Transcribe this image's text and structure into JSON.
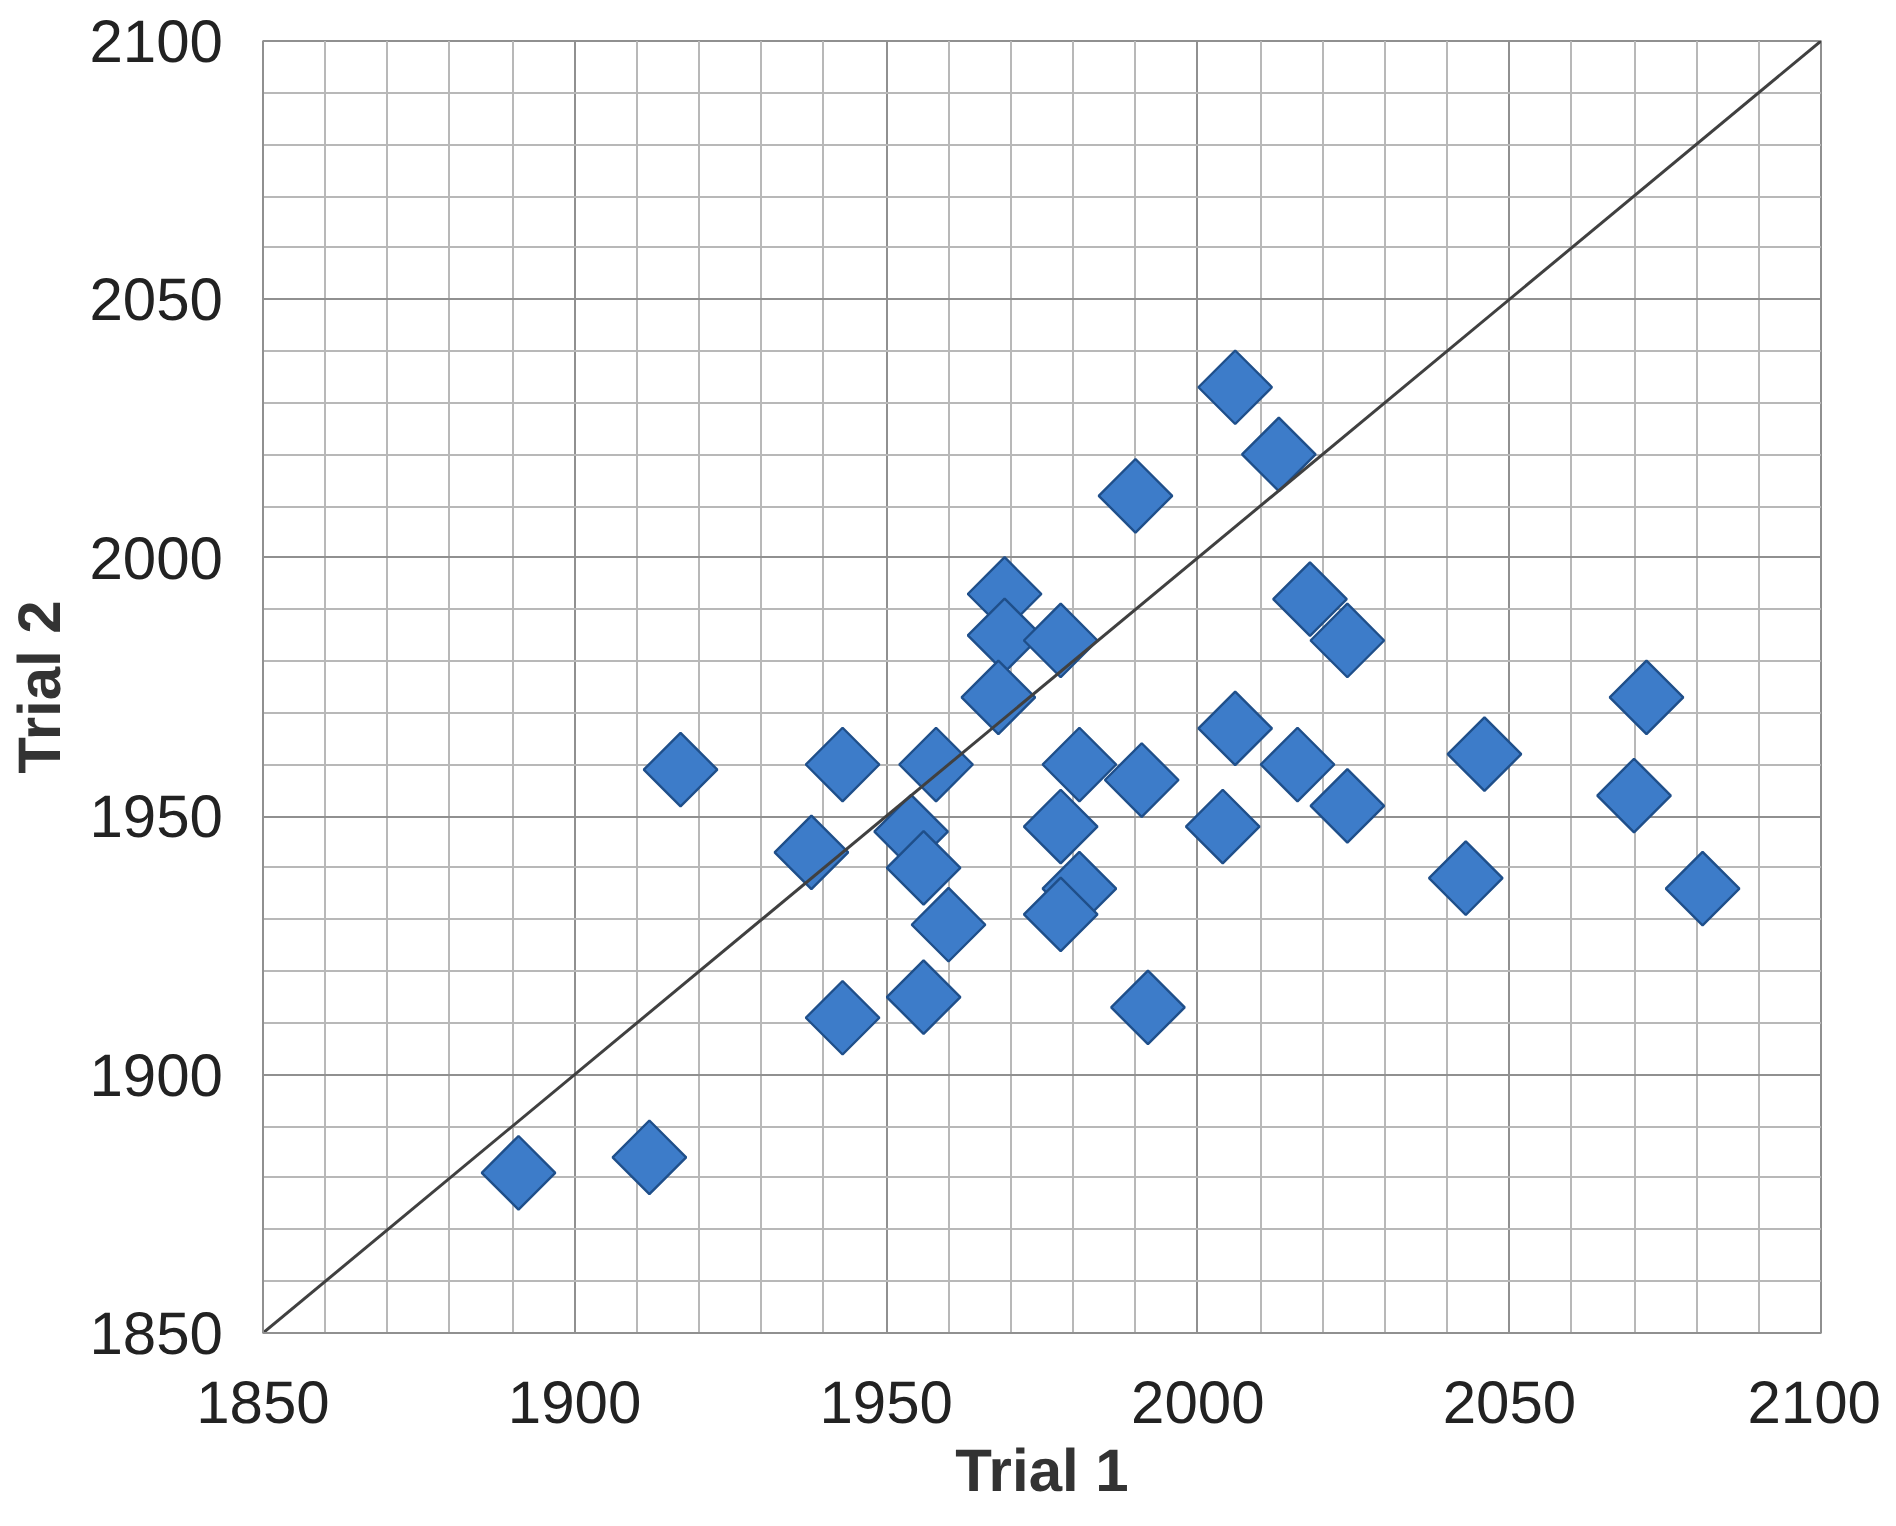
{
  "chart_data": {
    "type": "scatter",
    "xlabel": "Trial 1",
    "ylabel": "Trial 2",
    "xlim": [
      1850,
      2100
    ],
    "ylim": [
      1850,
      2100
    ],
    "xticks": [
      1850,
      1900,
      1950,
      2000,
      2050,
      2100
    ],
    "yticks": [
      1850,
      1900,
      1950,
      2000,
      2050,
      2100
    ],
    "grid": true,
    "series": [
      {
        "marker": "diamond",
        "color": "#3d7cc9",
        "x": [
          1891,
          1912,
          1917,
          1943,
          1938,
          1958,
          1954,
          1956,
          1960,
          1943,
          1956,
          1969,
          1969,
          1968,
          2006,
          2013,
          1990,
          2018,
          2024,
          1978,
          2006,
          1991,
          1981,
          2016,
          2024,
          2004,
          2046,
          2043,
          2072,
          2070,
          2081,
          1978,
          1981,
          1978,
          1992
        ],
        "values": [
          1881,
          1884,
          1959,
          1960,
          1943,
          1960,
          1947,
          1940,
          1929,
          1911,
          1915,
          1993,
          1985,
          1973,
          2033,
          2020,
          2012,
          1992,
          1984,
          1984,
          1967,
          1957,
          1960,
          1960,
          1952,
          1948,
          1962,
          1938,
          1973,
          1954,
          1936,
          1948,
          1936,
          1931,
          1913
        ]
      },
      {
        "type": "line",
        "marker": "none",
        "color": "#404040",
        "x": [
          1850,
          2100
        ],
        "values": [
          1850,
          2100
        ]
      }
    ]
  }
}
